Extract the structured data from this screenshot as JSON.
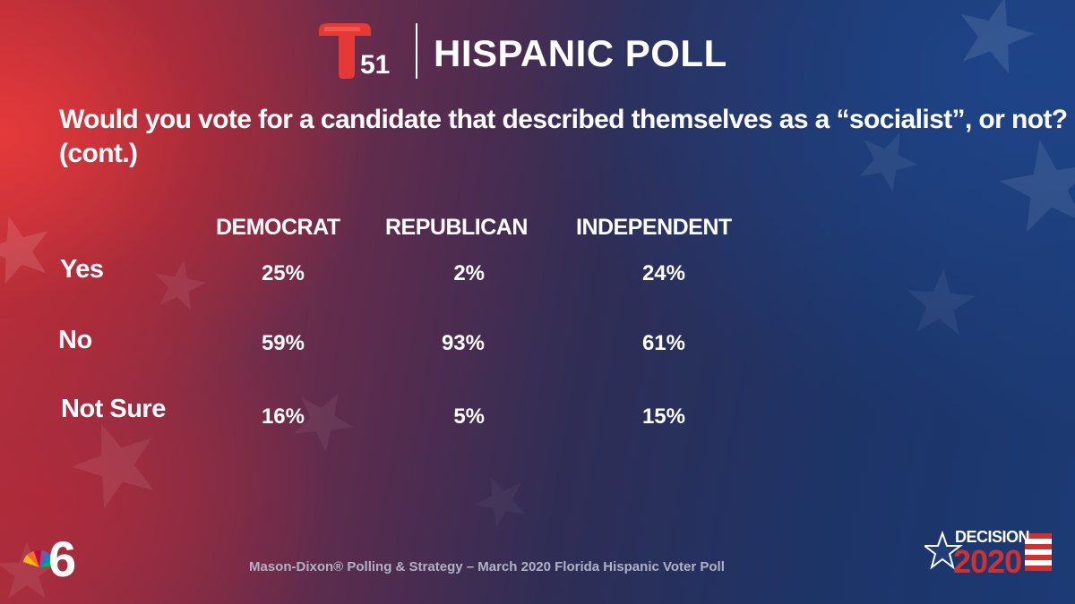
{
  "header": {
    "station_number": "51",
    "title": "HISPANIC POLL"
  },
  "question": "Would you vote for a candidate that described themselves as a “socialist”, or not? (cont.)",
  "chart_data": {
    "type": "table",
    "columns": [
      "DEMOCRAT",
      "REPUBLICAN",
      "INDEPENDENT"
    ],
    "rows": [
      {
        "label": "Yes",
        "values": [
          "25%",
          "2%",
          "24%"
        ]
      },
      {
        "label": "No",
        "values": [
          "59%",
          "93%",
          "61%"
        ]
      },
      {
        "label": "Not Sure",
        "values": [
          "16%",
          "5%",
          "15%"
        ]
      }
    ]
  },
  "footer": {
    "source": "Mason-Dixon® Polling & Strategy – March 2020 Florida Hispanic Voter Poll",
    "badge_word": "DECISION",
    "badge_year": "2020"
  },
  "icons": {
    "left_logo": "nbc-peacock-6-icon",
    "top_logo": "telemundo-t-icon",
    "right_logo": "decision-2020-star-icon"
  },
  "colors": {
    "telemundo_red": "#e53935",
    "source_gray": "#b0b3c4"
  }
}
